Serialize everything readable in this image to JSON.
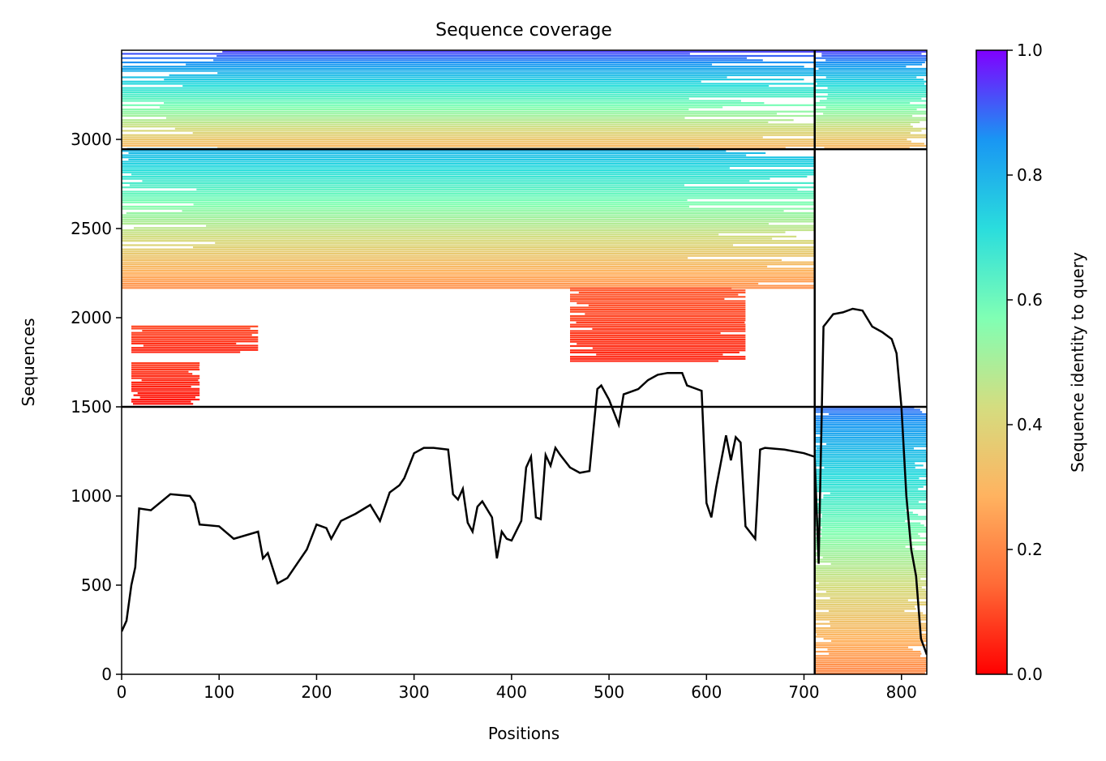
{
  "chart_data": {
    "type": "heatmap",
    "title": "Sequence coverage",
    "xlabel": "Positions",
    "ylabel": "Sequences",
    "xlim": [
      0,
      826
    ],
    "ylim": [
      0,
      3500
    ],
    "xticks": [
      "0",
      "100",
      "200",
      "300",
      "400",
      "500",
      "600",
      "700",
      "800"
    ],
    "yticks": [
      "0",
      "500",
      "1000",
      "1500",
      "2000",
      "2500",
      "3000"
    ],
    "chain_boundary_x": 711,
    "block_boundaries_y": [
      1500,
      2945
    ],
    "colorbar": {
      "label": "Sequence identity to query",
      "range": [
        0.0,
        1.0
      ],
      "ticks": [
        "0.0",
        "0.2",
        "0.4",
        "0.6",
        "0.8",
        "1.0"
      ],
      "colors": [
        "#ff0000",
        "#ff6a36",
        "#ffb360",
        "#d4dd80",
        "#80ffb4",
        "#2adddd",
        "#1996f3",
        "#8000ff"
      ]
    },
    "coverage_regions": [
      {
        "block": "paired",
        "x": [
          0,
          711
        ],
        "y": [
          2945,
          3500
        ],
        "identity": [
          0.3,
          0.95
        ]
      },
      {
        "block": "paired",
        "x": [
          711,
          826
        ],
        "y": [
          2945,
          3500
        ],
        "identity": [
          0.3,
          0.95
        ]
      },
      {
        "block": "chain-1",
        "x": [
          0,
          711
        ],
        "y": [
          2160,
          2945
        ],
        "identity": [
          0.22,
          0.8
        ]
      },
      {
        "block": "chain-1",
        "x": [
          460,
          640
        ],
        "y": [
          1750,
          2160
        ],
        "identity": [
          0.05,
          0.12
        ]
      },
      {
        "block": "chain-1",
        "x": [
          10,
          80
        ],
        "y": [
          1510,
          1740
        ],
        "identity": [
          0.02,
          0.08
        ]
      },
      {
        "block": "chain-1",
        "x": [
          10,
          140
        ],
        "y": [
          1800,
          1950
        ],
        "identity": [
          0.05,
          0.1
        ]
      },
      {
        "block": "chain-2",
        "x": [
          711,
          826
        ],
        "y": [
          0,
          1500
        ],
        "identity": [
          0.2,
          0.9
        ]
      }
    ],
    "coverage_line": {
      "x": [
        0,
        5,
        10,
        14,
        18,
        30,
        50,
        70,
        75,
        80,
        100,
        115,
        140,
        145,
        150,
        160,
        170,
        180,
        190,
        200,
        210,
        215,
        225,
        240,
        255,
        265,
        275,
        285,
        290,
        300,
        310,
        320,
        335,
        340,
        345,
        350,
        355,
        360,
        365,
        370,
        380,
        385,
        390,
        395,
        400,
        410,
        415,
        420,
        425,
        430,
        435,
        440,
        445,
        450,
        460,
        470,
        480,
        488,
        490,
        492,
        500,
        510,
        515,
        520,
        530,
        540,
        550,
        560,
        575,
        580,
        590,
        595,
        600,
        605,
        610,
        620,
        625,
        630,
        635,
        640,
        650,
        655,
        660,
        680,
        700,
        711,
        715,
        720,
        730,
        740,
        750,
        760,
        770,
        780,
        790,
        795,
        800,
        805,
        810,
        815,
        820,
        826
      ],
      "y": [
        240,
        300,
        500,
        600,
        930,
        920,
        1010,
        1000,
        960,
        840,
        830,
        760,
        800,
        650,
        680,
        510,
        540,
        620,
        700,
        840,
        820,
        760,
        860,
        900,
        950,
        860,
        1020,
        1060,
        1100,
        1240,
        1270,
        1270,
        1260,
        1010,
        980,
        1040,
        850,
        800,
        940,
        970,
        880,
        650,
        800,
        760,
        750,
        860,
        1160,
        1220,
        880,
        870,
        1230,
        1170,
        1270,
        1230,
        1160,
        1130,
        1140,
        1600,
        1610,
        1620,
        1540,
        1400,
        1570,
        1580,
        1600,
        1650,
        1680,
        1690,
        1690,
        1620,
        1600,
        1590,
        960,
        880,
        1050,
        1340,
        1200,
        1330,
        1300,
        830,
        760,
        1260,
        1270,
        1260,
        1240,
        1220,
        620,
        1950,
        2020,
        2030,
        2050,
        2040,
        1950,
        1920,
        1880,
        1800,
        1500,
        1000,
        700,
        550,
        200,
        110
      ]
    }
  }
}
